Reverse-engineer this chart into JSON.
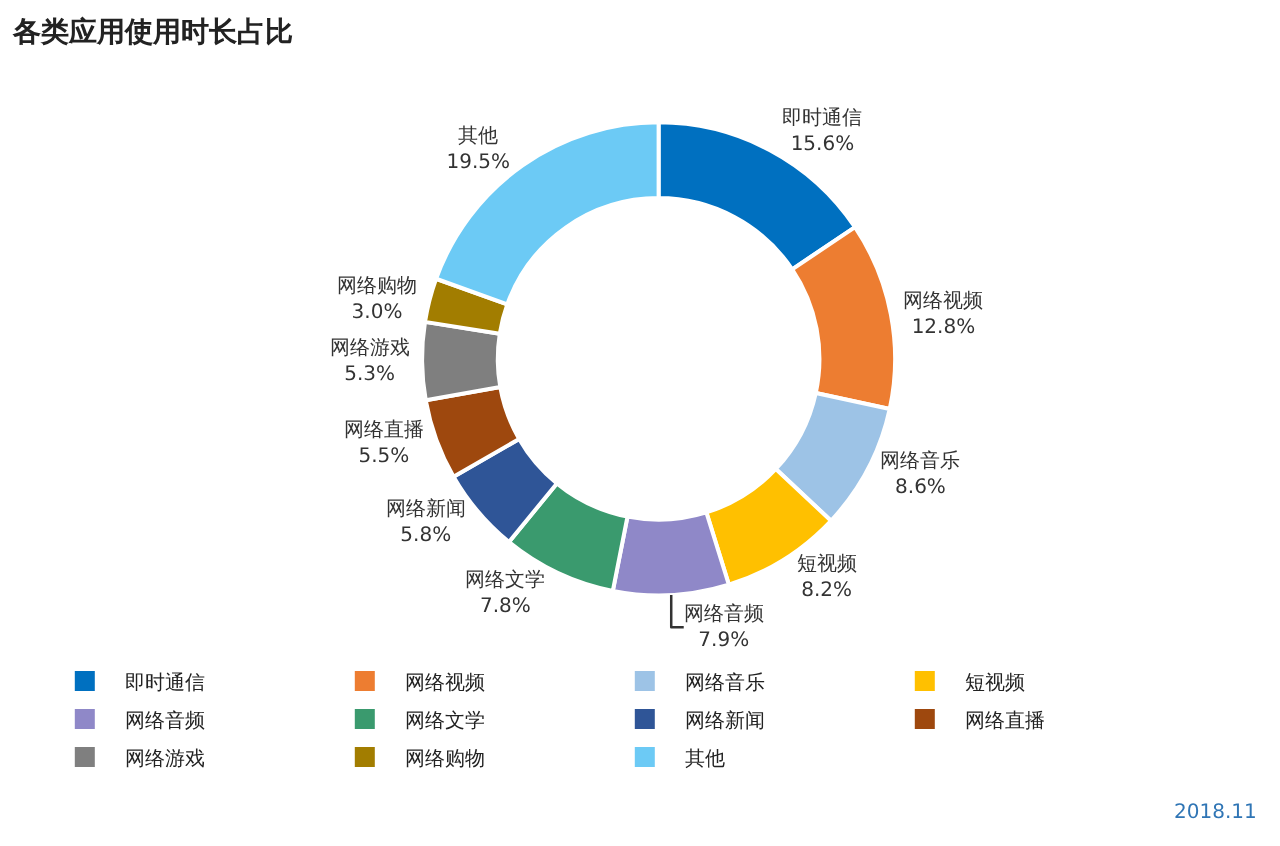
{
  "chart_data": {
    "type": "donut",
    "title": "各类应用使用时长占比",
    "categories": [
      "即时通信",
      "网络视频",
      "网络音乐",
      "短视频",
      "网络音频",
      "网络文学",
      "网络新闻",
      "网络直播",
      "网络游戏",
      "网络购物",
      "其他"
    ],
    "values": [
      15.6,
      12.8,
      8.6,
      8.2,
      7.9,
      7.8,
      5.8,
      5.5,
      5.3,
      3.0,
      19.5
    ],
    "value_labels": [
      "15.6%",
      "12.8%",
      "8.6%",
      "8.2%",
      "7.9%",
      "7.8%",
      "5.8%",
      "5.5%",
      "5.3%",
      "3.0%",
      "19.5%"
    ],
    "colors": [
      "#0070c0",
      "#ed7d31",
      "#9dc3e6",
      "#ffc000",
      "#8f88c8",
      "#3a9a6e",
      "#2f5597",
      "#9e480e",
      "#7f7f7f",
      "#a27d00",
      "#6ccaf5"
    ],
    "legend": "bottom",
    "annotations": [
      "2018.11"
    ]
  }
}
